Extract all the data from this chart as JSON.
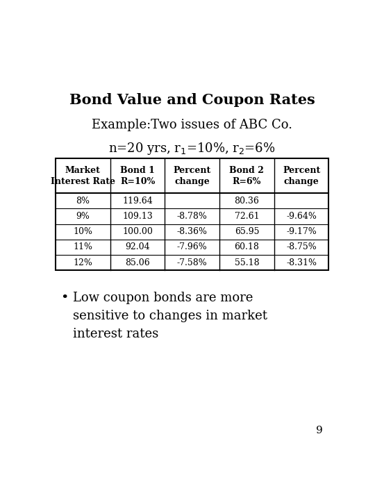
{
  "title": "Bond Value and Coupon Rates",
  "subtitle1": "Example:Two issues of ABC Co.",
  "subtitle2": "n=20 yrs, r$_1$=10%, r$_2$=6%",
  "bg_color": "#ffffff",
  "title_fontsize": 15,
  "subtitle_fontsize": 13,
  "table_headers": [
    "Market\nInterest Rate",
    "Bond 1\nR=10%",
    "Percent\nchange",
    "Bond 2\nR=6%",
    "Percent\nchange"
  ],
  "table_data": [
    [
      "8%",
      "119.64",
      "",
      "80.36",
      ""
    ],
    [
      "9%",
      "109.13",
      "-8.78%",
      "72.61",
      "-9.64%"
    ],
    [
      "10%",
      "100.00",
      "-8.36%",
      "65.95",
      "-9.17%"
    ],
    [
      "11%",
      "92.04",
      "-7.96%",
      "60.18",
      "-8.75%"
    ],
    [
      "12%",
      "85.06",
      "-7.58%",
      "55.18",
      "-8.31%"
    ]
  ],
  "bullet_text": "Low coupon bonds are more\nsensitive to changes in market\ninterest rates",
  "page_number": "9",
  "table_font_size": 9,
  "bullet_font_size": 13
}
